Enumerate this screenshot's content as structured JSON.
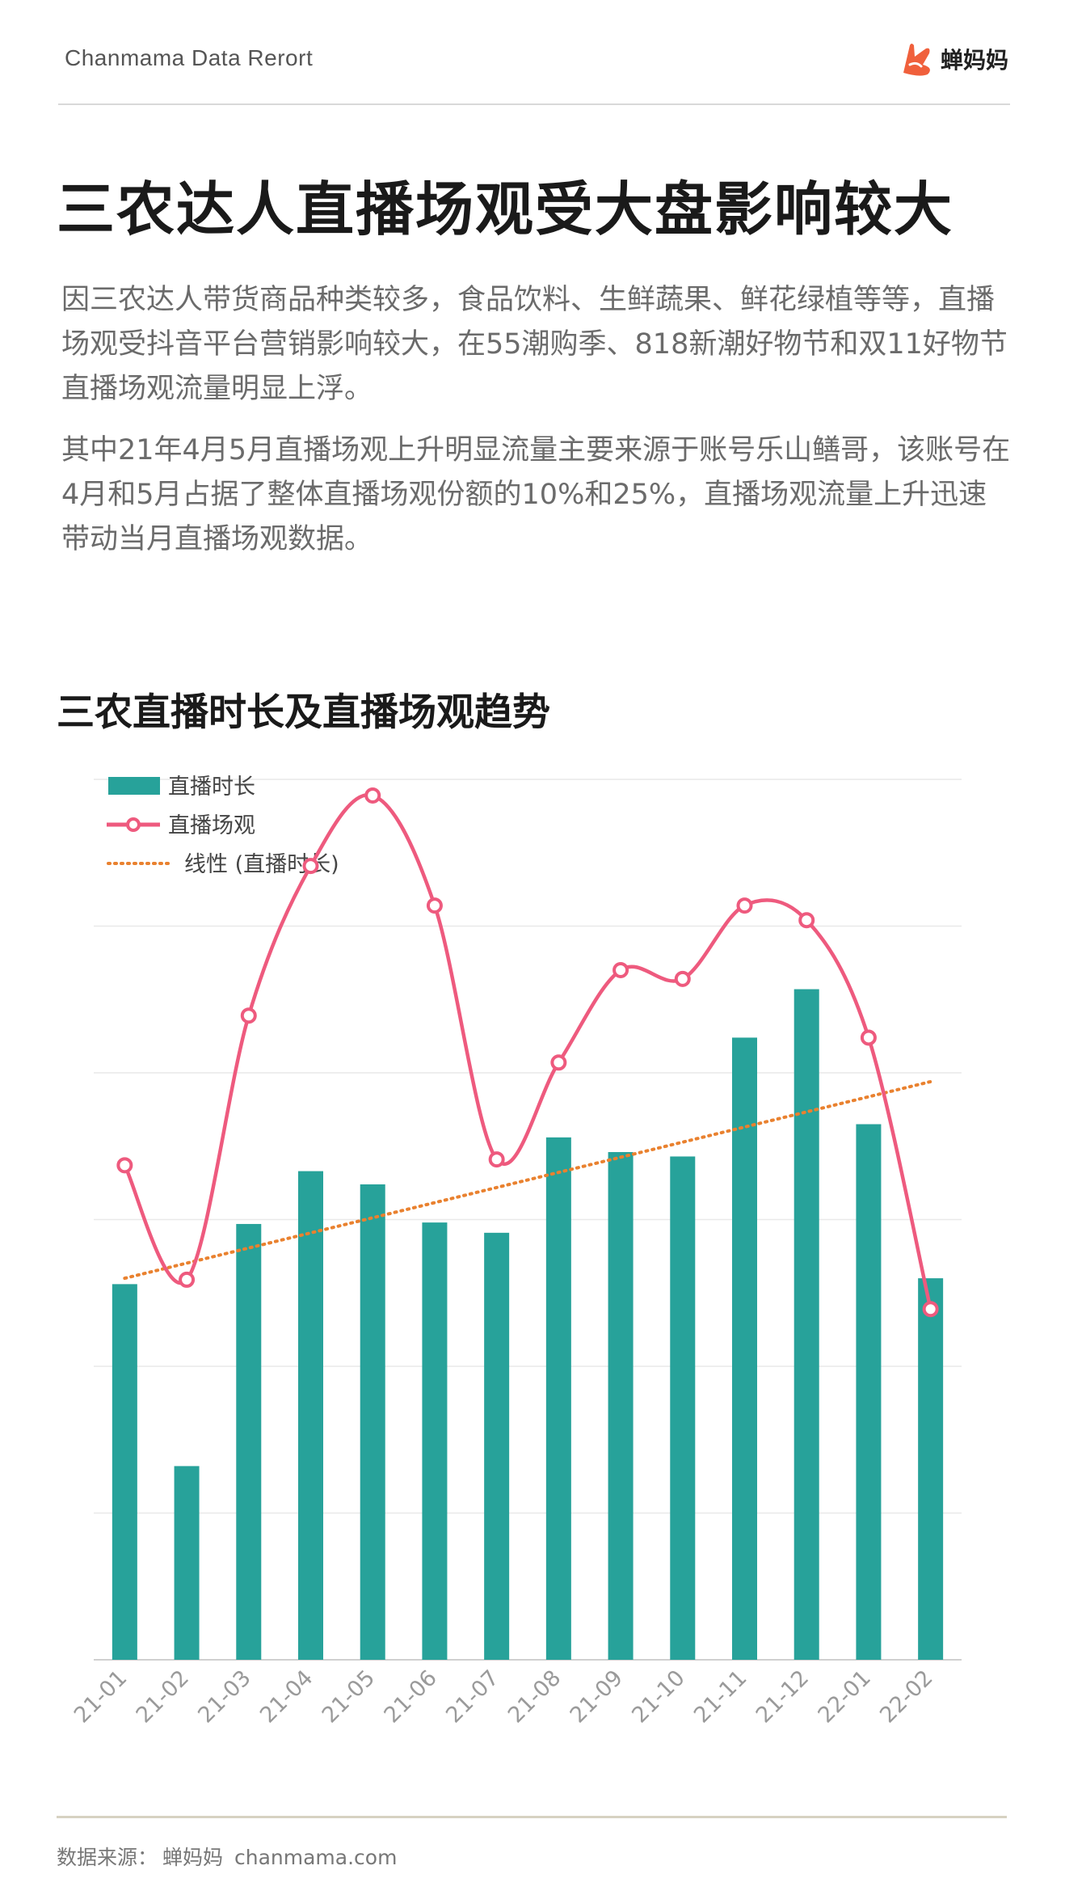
{
  "header": {
    "brand_text": "Chanmama Data Rerort",
    "logo_text": "蝉妈妈"
  },
  "page": {
    "title": "三农达人直播场观受大盘影响较大",
    "paragraph1": "因三农达人带货商品种类较多，食品饮料、生鲜蔬果、鲜花绿植等等，直播场观受抖音平台营销影响较大，在55潮购季、818新潮好物节和双11好物节直播场观流量明显上浮。",
    "paragraph2": "其中21年4月5月直播场观上升明显流量主要来源于账号乐山鳝哥，该账号在4月和5月占据了整体直播场观份额的10%和25%，直播场观流量上升迅速带动当月直播场观数据。"
  },
  "colors": {
    "bar": "#27a29a",
    "line": "#ee5a7e",
    "trend": "#e9812f",
    "logo_accent": "#f0603c"
  },
  "chart_data": {
    "type": "bar",
    "title": "三农直播时长及直播场观趋势",
    "categories": [
      "21-01",
      "21-02",
      "21-03",
      "21-04",
      "21-05",
      "21-06",
      "21-07",
      "21-08",
      "21-09",
      "21-10",
      "21-11",
      "21-12",
      "22-01",
      "22-02"
    ],
    "series": [
      {
        "name": "直播时长",
        "type": "bar",
        "values": [
          2.56,
          1.32,
          2.97,
          3.33,
          3.24,
          2.98,
          2.91,
          3.56,
          3.46,
          3.43,
          4.24,
          4.57,
          3.65,
          2.6
        ]
      },
      {
        "name": "直播场观",
        "type": "line",
        "values": [
          3.37,
          2.59,
          4.39,
          5.41,
          5.89,
          5.14,
          3.41,
          4.07,
          4.7,
          4.64,
          5.14,
          5.04,
          4.24,
          2.39
        ]
      },
      {
        "name": "线性 (直播时长)",
        "type": "trend",
        "from": 2.6,
        "to": 3.94
      }
    ],
    "ylim": [
      0,
      6
    ],
    "grid": true,
    "legend": "top-left",
    "xlabel": "",
    "ylabel": ""
  },
  "footer": {
    "source_label": "数据来源：",
    "source_name": "蝉妈妈",
    "source_url": "chanmama.com"
  }
}
